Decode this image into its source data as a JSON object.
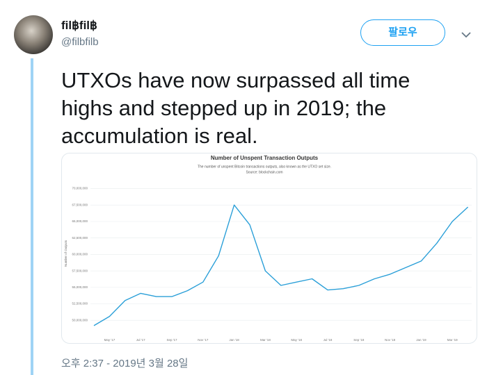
{
  "tweet": {
    "name": "fil฿fil฿",
    "handle": "@filbfilb",
    "follow": "팔로우",
    "text": "UTXOs have now surpassed all time highs and stepped up in 2019; the accumulation is real.",
    "timestamp": "오후 2:37 - 2019년 3월 28일"
  },
  "chart_data": {
    "type": "line",
    "title": "Number of Unspent Transaction Outputs",
    "subtitle": "The number of unspent Bitcoin transactions outputs, also known as the UTXO set size.",
    "source": "Source: blockchain.com",
    "ylabel": "Number of Outputs",
    "color": "#2a9fd8",
    "categories": [
      null,
      "May '17",
      null,
      "Jul '17",
      null,
      "Sep '17",
      null,
      "Nov '17",
      null,
      "Jan '18",
      null,
      "Mar '18",
      null,
      "May '18",
      null,
      "Jul '18",
      null,
      "Sep '18",
      null,
      "Nov '18",
      null,
      "Jan '19",
      null,
      "Mar '19",
      null
    ],
    "values": [
      49200000,
      50600000,
      53000000,
      54100000,
      53600000,
      53600000,
      54500000,
      55800000,
      59800000,
      67500000,
      64500000,
      57500000,
      55300000,
      55800000,
      56300000,
      54600000,
      54800000,
      55300000,
      56300000,
      57000000,
      58000000,
      59000000,
      61700000,
      65000000,
      67200000
    ],
    "ylim": [
      47500000,
      71000000
    ],
    "yticks": [
      {
        "value": 50000000,
        "label": "50,000,000"
      },
      {
        "value": 52500000,
        "label": "52,500,000"
      },
      {
        "value": 55000000,
        "label": "55,000,000"
      },
      {
        "value": 57500000,
        "label": "57,500,000"
      },
      {
        "value": 60000000,
        "label": "60,000,000"
      },
      {
        "value": 62500000,
        "label": "62,500,000"
      },
      {
        "value": 65000000,
        "label": "65,000,000"
      },
      {
        "value": 67500000,
        "label": "67,500,000"
      },
      {
        "value": 70000000,
        "label": "70,000,000"
      }
    ],
    "grid": true
  }
}
